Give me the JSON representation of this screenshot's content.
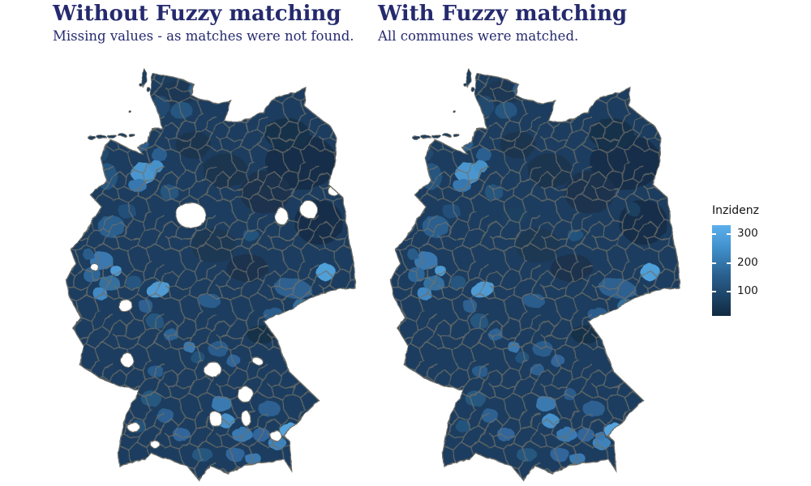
{
  "page": {
    "background": "#ffffff",
    "title_color": "#252a6e"
  },
  "panels": [
    {
      "title": "Without Fuzzy matching",
      "subtitle": "Missing values - as matches were not found."
    },
    {
      "title": "With Fuzzy matching",
      "subtitle": "All communes were matched."
    }
  ],
  "legend": {
    "title": "Inzidenz",
    "ticks": [
      "300",
      "200",
      "100"
    ],
    "gradient": [
      "#5db0ec",
      "#4090cc",
      "#2a608f",
      "#112a42"
    ]
  },
  "colors": {
    "map_base": "#1d3e5e",
    "district_border": "#6e6e68",
    "missing_value": "#ffffff",
    "heading": "#252a6e"
  },
  "chart_data": {
    "type": "choropleth",
    "geography": "Germany, commune/district level",
    "variable": "Inzidenz",
    "legend_scale": {
      "ticks": [
        100,
        200,
        300
      ],
      "low_color": "#112a42",
      "high_color": "#5db0ec",
      "approx_range": [
        15,
        330
      ],
      "dark_is_low": true
    },
    "shading_format": "[x,y,rx,ry,rotation_deg,color] in 370x486 map coordinates",
    "missing_format": "[x,y,rx,ry] white patches where no match was found",
    "shared_shading": [
      [
        300,
        115,
        45,
        32,
        0,
        "#182f49"
      ],
      [
        255,
        150,
        32,
        24,
        0,
        "#1a334e"
      ],
      [
        322,
        185,
        30,
        26,
        0,
        "#182f49"
      ],
      [
        205,
        125,
        28,
        20,
        0,
        "#1b3550"
      ],
      [
        282,
        82,
        28,
        18,
        0,
        "#19314b"
      ],
      [
        232,
        238,
        26,
        16,
        0,
        "#1a334e"
      ],
      [
        190,
        212,
        28,
        20,
        0,
        "#1c3752"
      ],
      [
        165,
        95,
        22,
        16,
        0,
        "#1b3550"
      ],
      [
        145,
        35,
        26,
        14,
        0,
        "#1c3854"
      ],
      [
        250,
        315,
        18,
        11,
        0,
        "#193049"
      ],
      [
        235,
        55,
        18,
        10,
        0,
        "#1e4263"
      ],
      [
        150,
        55,
        14,
        10,
        0,
        "#27567f"
      ],
      [
        168,
        30,
        10,
        8,
        0,
        "#2a5c89"
      ],
      [
        125,
        50,
        10,
        12,
        0,
        "#224a70"
      ],
      [
        45,
        105,
        14,
        10,
        0,
        "#23496e"
      ],
      [
        100,
        95,
        9,
        7,
        0,
        "#2b5e8e"
      ],
      [
        122,
        106,
        10,
        8,
        0,
        "#2c5f90"
      ],
      [
        103,
        128,
        16,
        12,
        0,
        "#4c96ce"
      ],
      [
        95,
        142,
        11,
        8,
        0,
        "#3878b0"
      ],
      [
        118,
        120,
        9,
        7,
        0,
        "#4791c9"
      ],
      [
        57,
        132,
        13,
        16,
        0,
        "#26567f"
      ],
      [
        135,
        150,
        12,
        9,
        0,
        "#27547e"
      ],
      [
        62,
        190,
        17,
        13,
        0,
        "#2b5e8e"
      ],
      [
        82,
        172,
        11,
        9,
        0,
        "#24507a"
      ],
      [
        50,
        230,
        15,
        11,
        0,
        "#3a78af"
      ],
      [
        38,
        246,
        11,
        9,
        0,
        "#2e6698"
      ],
      [
        60,
        256,
        13,
        9,
        0,
        "#356f9f"
      ],
      [
        48,
        268,
        9,
        7,
        0,
        "#4288c2"
      ],
      [
        68,
        241,
        7,
        6,
        0,
        "#4f9ad2"
      ],
      [
        33,
        222,
        7,
        6,
        0,
        "#2a5c89"
      ],
      [
        90,
        255,
        10,
        8,
        0,
        "#27577f"
      ],
      [
        121,
        263,
        15,
        9,
        -15,
        "#4f9ad2"
      ],
      [
        105,
        282,
        9,
        8,
        0,
        "#2d6191"
      ],
      [
        117,
        300,
        11,
        9,
        0,
        "#27567e"
      ],
      [
        137,
        316,
        9,
        7,
        0,
        "#2e6494"
      ],
      [
        160,
        330,
        8,
        6,
        0,
        "#3a78af"
      ],
      [
        185,
        276,
        14,
        8,
        0,
        "#2a5c8c"
      ],
      [
        290,
        262,
        24,
        12,
        8,
        "#2d6190"
      ],
      [
        331,
        243,
        12,
        10,
        0,
        "#4f9fd9"
      ],
      [
        300,
        282,
        11,
        8,
        0,
        "#356f9f"
      ],
      [
        265,
        292,
        13,
        8,
        0,
        "#2a5c8c"
      ],
      [
        237,
        200,
        10,
        7,
        0,
        "#24527b"
      ],
      [
        196,
        332,
        13,
        9,
        0,
        "#2a5c8c"
      ],
      [
        215,
        346,
        9,
        7,
        0,
        "#30659a"
      ],
      [
        170,
        342,
        9,
        7,
        0,
        "#24527b"
      ],
      [
        118,
        358,
        10,
        7,
        0,
        "#2a5c8c"
      ],
      [
        112,
        390,
        13,
        9,
        0,
        "#27587f"
      ],
      [
        130,
        410,
        11,
        8,
        0,
        "#2d6191"
      ],
      [
        96,
        422,
        9,
        7,
        0,
        "#24527b"
      ],
      [
        150,
        432,
        11,
        8,
        0,
        "#30659a"
      ],
      [
        200,
        396,
        13,
        9,
        0,
        "#3a79b1"
      ],
      [
        206,
        416,
        11,
        8,
        0,
        "#4690ca"
      ],
      [
        226,
        432,
        13,
        9,
        0,
        "#3a79b1"
      ],
      [
        250,
        432,
        11,
        8,
        0,
        "#30659a"
      ],
      [
        270,
        442,
        11,
        8,
        0,
        "#3f83bb"
      ],
      [
        284,
        426,
        11,
        8,
        -20,
        "#54a3dd"
      ],
      [
        260,
        402,
        14,
        9,
        0,
        "#2d6191"
      ],
      [
        176,
        455,
        13,
        8,
        0,
        "#27587f"
      ],
      [
        218,
        455,
        12,
        8,
        0,
        "#30659a"
      ],
      [
        240,
        460,
        10,
        7,
        0,
        "#3a79b1"
      ]
    ],
    "maps": [
      {
        "id": "left",
        "title": "Without Fuzzy matching",
        "subtitle": "Missing values - as matches were not found.",
        "missing_communes_shown_white": true,
        "extra_shading": [],
        "missing_spots": [
          [
            162,
            177,
            19,
            15
          ],
          [
            275,
            178,
            8,
            10
          ],
          [
            309,
            170,
            11,
            10
          ],
          [
            340,
            148,
            7,
            6
          ],
          [
            41,
            237,
            5,
            4
          ],
          [
            80,
            282,
            9,
            7
          ],
          [
            82,
            345,
            8,
            8
          ],
          [
            189,
            356,
            11,
            9
          ],
          [
            245,
            346,
            6,
            4
          ],
          [
            230,
            385,
            10,
            9
          ],
          [
            193,
            414,
            8,
            9
          ],
          [
            231,
            413,
            5,
            9
          ],
          [
            268,
            433,
            7,
            6
          ],
          [
            187,
            475,
            6,
            5
          ],
          [
            90,
            423,
            8,
            5
          ],
          [
            117,
            443,
            6,
            4
          ]
        ]
      },
      {
        "id": "right",
        "title": "With Fuzzy matching",
        "subtitle": "All communes were matched.",
        "missing_communes_shown_white": false,
        "extra_shading": [
          [
            162,
            177,
            16,
            10,
            0,
            "#1e4161"
          ],
          [
            309,
            170,
            9,
            8,
            0,
            "#1d3f5f"
          ],
          [
            189,
            356,
            9,
            7,
            0,
            "#2d6191"
          ],
          [
            230,
            385,
            8,
            7,
            0,
            "#2a5c8c"
          ],
          [
            268,
            433,
            6,
            5,
            0,
            "#3a79b1"
          ]
        ],
        "missing_spots": []
      }
    ]
  }
}
